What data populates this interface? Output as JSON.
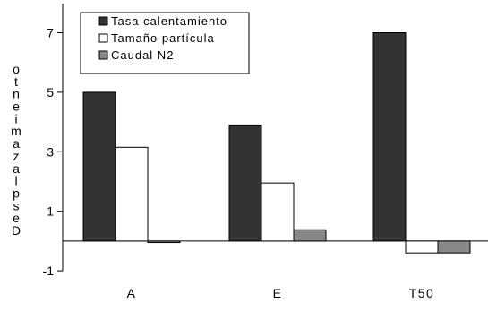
{
  "chart_data": {
    "type": "bar",
    "title": "",
    "xlabel": "",
    "ylabel": "Desplazamiento",
    "categories": [
      "A",
      "E",
      "T50"
    ],
    "series": [
      {
        "name": "Tasa calentamiento",
        "color": "#333333",
        "values": [
          5.0,
          3.9,
          7.0
        ]
      },
      {
        "name": "Tamaño partícula",
        "color": "#ffffff",
        "values": [
          3.15,
          1.95,
          -0.4
        ]
      },
      {
        "name": "Caudal N2",
        "color": "#888888",
        "values": [
          -0.05,
          0.38,
          -0.4
        ]
      }
    ],
    "ylim": [
      -1,
      8
    ],
    "yticks": [
      -1,
      1,
      3,
      5,
      7
    ],
    "ytick_labels": [
      "-1",
      "1",
      "3",
      "5",
      "7"
    ],
    "grid": false,
    "legend_position": "top-left"
  }
}
